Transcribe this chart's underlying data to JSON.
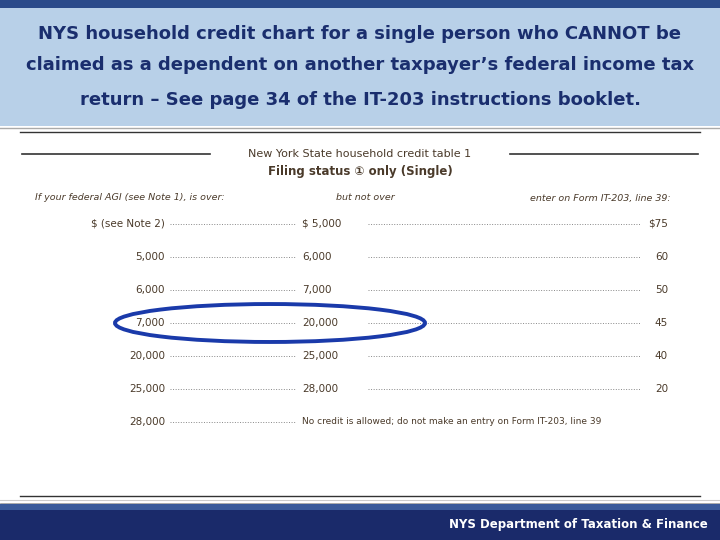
{
  "title_line1": "NYS household credit chart for a single person who CANNOT be",
  "title_line2": "claimed as a dependent on another taxpayer’s federal income tax",
  "title_line3": "return – See page 34 of the IT-203 instructions booklet.",
  "title_bg": "#b8d0e8",
  "title_text_color": "#1a2e6e",
  "title_stripe_top": "#2a4a8a",
  "title_stripe_bottom": "#1a3a7a",
  "table_title1": "New York State household credit table 1",
  "table_title2": "Filing status ① only (Single)",
  "col_header1": "If your federal AGI (see Note 1), is over:",
  "col_header2": "but not over",
  "col_header3": "enter on Form IT-203, line 39:",
  "rows": [
    [
      "$ (see Note 2)",
      "$ 5,000",
      "$75"
    ],
    [
      "5,000",
      "6,000",
      "60"
    ],
    [
      "6,000",
      "7,000",
      "50"
    ],
    [
      "7,000",
      "20,000",
      "45"
    ],
    [
      "20,000",
      "25,000",
      "40"
    ],
    [
      "25,000",
      "28,000",
      "20"
    ],
    [
      "28,000",
      "No credit is allowed; do not make an entry on Form IT-203, line 39",
      ""
    ]
  ],
  "circle_row": 3,
  "footer_text": "NYS Department of Taxation & Finance",
  "footer_bg_top": "#3a5a9a",
  "footer_bg_bottom": "#1a2a6a",
  "footer_text_color": "#ffffff",
  "bg_color": "#ffffff",
  "table_text_color": "#4a3a2a",
  "line_color": "#333333",
  "dot_color": "#888888",
  "circle_color": "#1a3aaa"
}
